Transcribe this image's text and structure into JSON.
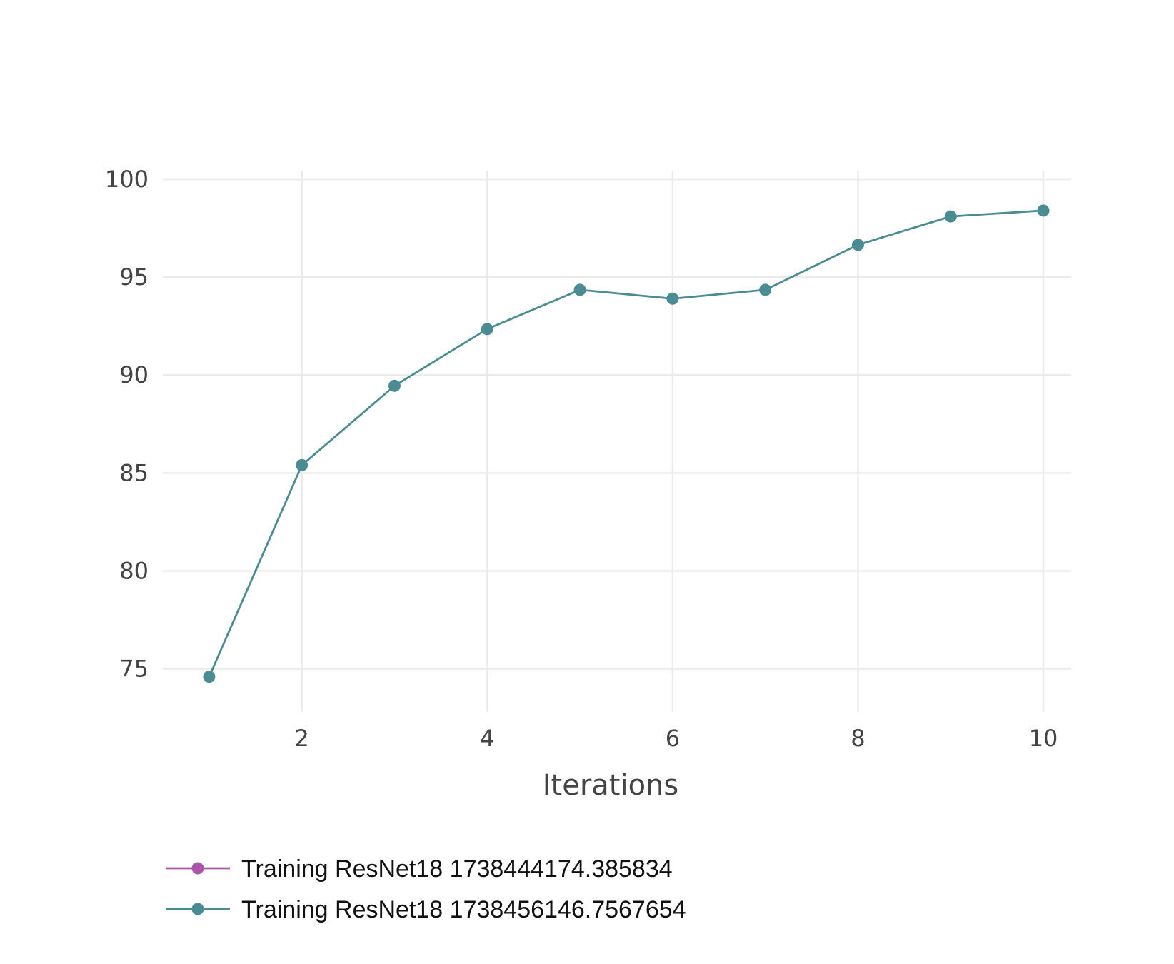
{
  "chart_data": {
    "type": "line",
    "title": "",
    "xlabel": "Iterations",
    "ylabel": "",
    "xlim": [
      0.5,
      10.3
    ],
    "ylim": [
      72.8,
      100.4
    ],
    "x_ticks": [
      2,
      4,
      6,
      8,
      10
    ],
    "y_ticks": [
      75,
      80,
      85,
      90,
      95,
      100
    ],
    "grid": true,
    "legend_position": "bottom-left",
    "series": [
      {
        "name": "Training ResNet18 1738444174.385834",
        "color": "#ab54aa",
        "x": [],
        "y": []
      },
      {
        "name": "Training ResNet18 1738456146.7567654",
        "color": "#4a8c93",
        "x": [
          1,
          2,
          3,
          4,
          5,
          6,
          7,
          8,
          9,
          10
        ],
        "y": [
          74.6,
          85.4,
          89.45,
          92.35,
          94.35,
          93.9,
          94.35,
          96.65,
          98.1,
          98.4
        ]
      }
    ]
  }
}
